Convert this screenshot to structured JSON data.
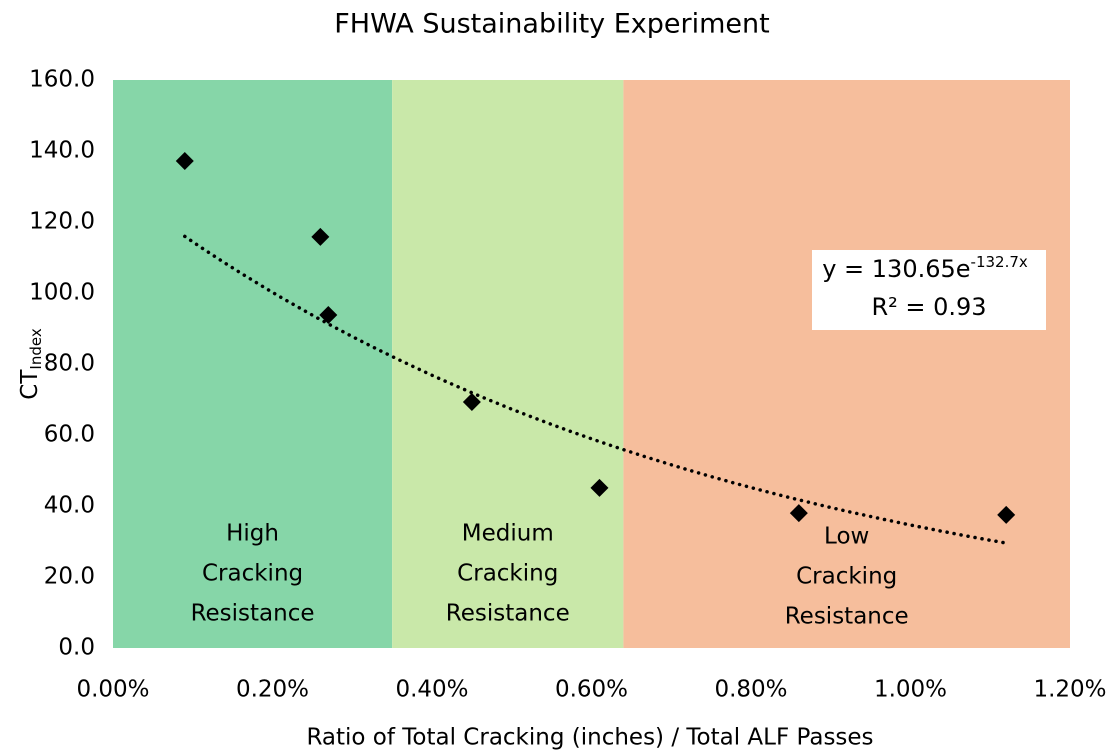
{
  "chart_data": {
    "type": "scatter",
    "title": "FHWA Sustainability Experiment",
    "xlabel": "Ratio of Total Cracking (inches) / Total ALF Passes",
    "ylabel": "CT",
    "ylabel_subscript": "Index",
    "xlim": [
      0,
      0.012
    ],
    "ylim": [
      0,
      160
    ],
    "xticks": [
      {
        "value": 0,
        "label": "0.00%"
      },
      {
        "value": 0.002,
        "label": "0.20%"
      },
      {
        "value": 0.004,
        "label": "0.40%"
      },
      {
        "value": 0.006,
        "label": "0.60%"
      },
      {
        "value": 0.008,
        "label": "0.80%"
      },
      {
        "value": 0.01,
        "label": "1.00%"
      },
      {
        "value": 0.012,
        "label": "1.20%"
      }
    ],
    "yticks": [
      {
        "value": 0,
        "label": "0.0"
      },
      {
        "value": 20,
        "label": "20.0"
      },
      {
        "value": 40,
        "label": "40.0"
      },
      {
        "value": 60,
        "label": "60.0"
      },
      {
        "value": 80,
        "label": "80.0"
      },
      {
        "value": 100,
        "label": "100.0"
      },
      {
        "value": 120,
        "label": "120.0"
      },
      {
        "value": 140,
        "label": "140.0"
      },
      {
        "value": 160,
        "label": "160.0"
      }
    ],
    "grid": false,
    "series": [
      {
        "color": "#000000",
        "x": [
          0.0009,
          0.0026,
          0.0027,
          0.0045,
          0.0061,
          0.0086,
          0.0112
        ],
        "values": [
          137.2,
          115.8,
          93.8,
          69.3,
          45.1,
          38.0,
          37.5
        ]
      }
    ],
    "trendline": {
      "coefficient": 130.65,
      "exponent": -132.7,
      "color": "#000000"
    },
    "equation": {
      "base": "y = 130.65e",
      "superscript": "-132.7x",
      "r2": "R² = 0.93"
    },
    "regions": [
      {
        "x": [
          0,
          0.0035
        ],
        "color": "#86d6a8",
        "label": [
          "High",
          "Cracking",
          "Resistance"
        ]
      },
      {
        "x": [
          0.0035,
          0.0064
        ],
        "color": "#c9e8a9",
        "label": [
          "Medium",
          "Cracking",
          "Resistance"
        ]
      },
      {
        "x": [
          0.0064,
          0.012
        ],
        "color": "#f6be9c",
        "label": [
          "Low",
          "Cracking",
          "Resistance"
        ]
      }
    ]
  }
}
